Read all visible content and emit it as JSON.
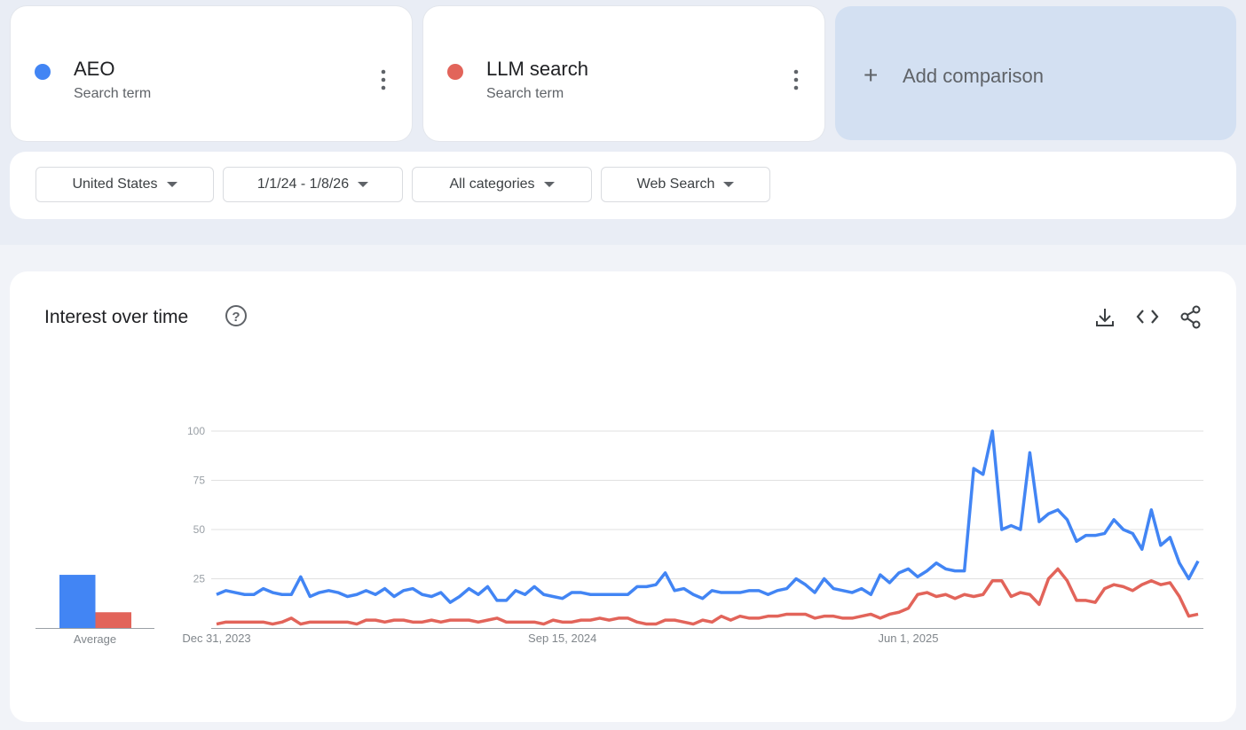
{
  "comparisons": [
    {
      "subtitle": "Search term"
    },
    {
      "subtitle": "Search term"
    }
  ],
  "add_comparison": "Add comparison",
  "filters": [
    "United States",
    "1/1/24 - 1/8/26",
    "All categories",
    "Web Search"
  ],
  "chart_data": {
    "type": "line",
    "title": "Interest over time",
    "categories": [
      "Dec 31, 2023",
      null,
      null,
      null,
      null,
      null,
      null,
      null,
      null,
      null,
      null,
      null,
      null,
      null,
      null,
      null,
      null,
      null,
      null,
      null,
      null,
      null,
      null,
      null,
      null,
      null,
      null,
      null,
      null,
      null,
      null,
      null,
      null,
      null,
      null,
      null,
      null,
      "Sep 15, 2024",
      null,
      null,
      null,
      null,
      null,
      null,
      null,
      null,
      null,
      null,
      null,
      null,
      null,
      null,
      null,
      null,
      null,
      null,
      null,
      null,
      null,
      null,
      null,
      null,
      null,
      null,
      null,
      null,
      null,
      null,
      null,
      null,
      null,
      null,
      null,
      null,
      "Jun 1, 2025",
      null,
      null,
      null,
      null,
      null,
      null,
      null,
      null,
      null,
      null,
      null,
      null,
      null,
      null,
      null,
      null,
      null,
      null,
      null,
      null,
      null,
      null,
      null,
      null,
      null,
      null,
      null,
      null,
      null,
      null,
      null
    ],
    "series": [
      {
        "name": "AEO",
        "color": "#4285f4",
        "values": [
          17,
          19,
          18,
          17,
          17,
          20,
          18,
          17,
          17,
          26,
          16,
          18,
          19,
          18,
          16,
          17,
          19,
          17,
          20,
          16,
          19,
          20,
          17,
          16,
          18,
          13,
          16,
          20,
          17,
          21,
          14,
          14,
          19,
          17,
          21,
          17,
          16,
          15,
          18,
          18,
          17,
          17,
          17,
          17,
          17,
          21,
          21,
          22,
          28,
          19,
          20,
          17,
          15,
          19,
          18,
          18,
          18,
          19,
          19,
          17,
          19,
          20,
          25,
          22,
          18,
          25,
          20,
          19,
          18,
          20,
          17,
          27,
          23,
          28,
          30,
          26,
          29,
          33,
          30,
          29,
          29,
          81,
          78,
          100,
          50,
          52,
          50,
          89,
          54,
          58,
          60,
          55,
          44,
          47,
          47,
          48,
          55,
          50,
          48,
          40,
          60,
          42,
          46,
          33,
          25,
          34
        ]
      },
      {
        "name": "LLM search",
        "color": "#e2645a",
        "values": [
          2,
          3,
          3,
          3,
          3,
          3,
          2,
          3,
          5,
          2,
          3,
          3,
          3,
          3,
          3,
          2,
          4,
          4,
          3,
          4,
          4,
          3,
          3,
          4,
          3,
          4,
          4,
          4,
          3,
          4,
          5,
          3,
          3,
          3,
          3,
          2,
          4,
          3,
          3,
          4,
          4,
          5,
          4,
          5,
          5,
          3,
          2,
          2,
          4,
          4,
          3,
          2,
          4,
          3,
          6,
          4,
          6,
          5,
          5,
          6,
          6,
          7,
          7,
          7,
          5,
          6,
          6,
          5,
          5,
          6,
          7,
          5,
          7,
          8,
          10,
          17,
          18,
          16,
          17,
          15,
          17,
          16,
          17,
          24,
          24,
          16,
          18,
          17,
          12,
          25,
          30,
          24,
          14,
          14,
          13,
          20,
          22,
          21,
          19,
          22,
          24,
          22,
          23,
          16,
          6,
          7
        ]
      }
    ],
    "average": {
      "label": "Average",
      "values": [
        27,
        8
      ]
    },
    "ylim": [
      0,
      100
    ],
    "yticks": [
      25,
      50,
      75,
      100
    ],
    "grid": true
  }
}
